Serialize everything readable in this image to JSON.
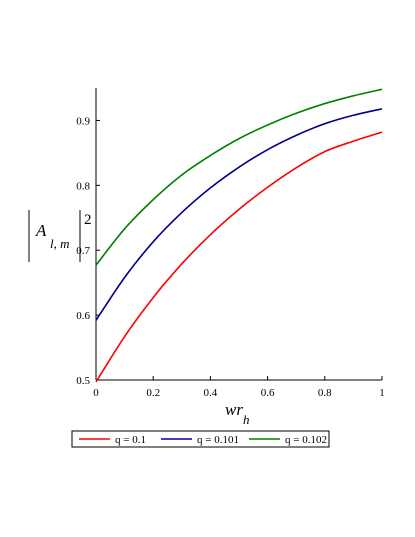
{
  "chart_data": {
    "type": "line",
    "xlabel": {
      "main": "wr",
      "sub": "h"
    },
    "ylabel": {
      "main": "A",
      "sub": "l, m",
      "sup": "2"
    },
    "xlim": [
      0,
      1
    ],
    "ylim": [
      0.5,
      0.95
    ],
    "x_ticks": [
      0,
      0.2,
      0.4,
      0.6,
      0.8,
      1
    ],
    "x_tick_labels": [
      "0",
      "0.2",
      "0.4",
      "0.6",
      "0.8",
      "1"
    ],
    "y_ticks": [
      0.5,
      0.6,
      0.7,
      0.8,
      0.9
    ],
    "y_tick_labels": [
      "0.5",
      "0.6",
      "0.7",
      "0.8",
      "0.9"
    ],
    "grid": false,
    "legend_position": "bottom",
    "x": [
      0,
      0.1,
      0.2,
      0.3,
      0.4,
      0.5,
      0.6,
      0.7,
      0.8,
      0.9,
      1
    ],
    "series": [
      {
        "name": "q = 0.1",
        "color": "#ff0000",
        "values": [
          0.497,
          0.567,
          0.627,
          0.679,
          0.724,
          0.763,
          0.797,
          0.827,
          0.852,
          0.868,
          0.882
        ]
      },
      {
        "name": "q = 0.101",
        "color": "#00008b",
        "values": [
          0.592,
          0.658,
          0.713,
          0.758,
          0.796,
          0.828,
          0.855,
          0.877,
          0.895,
          0.908,
          0.918
        ]
      },
      {
        "name": "q = 0.102",
        "color": "#008000",
        "values": [
          0.677,
          0.733,
          0.778,
          0.816,
          0.846,
          0.872,
          0.893,
          0.911,
          0.926,
          0.938,
          0.948
        ]
      }
    ]
  }
}
